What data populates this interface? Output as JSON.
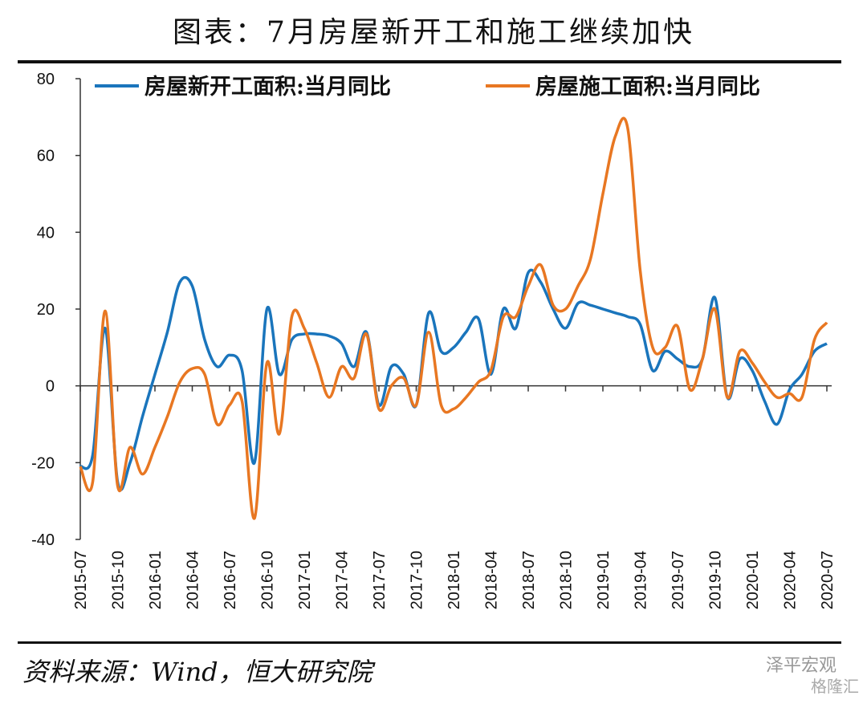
{
  "chart_data": {
    "type": "line",
    "title": "图表：7月房屋新开工和施工继续加快",
    "source": "资料来源：Wind，恒大研究院",
    "watermark": [
      "泽平宏观",
      "格隆汇"
    ],
    "categories": [
      "2015-07",
      null,
      null,
      "2015-10",
      null,
      null,
      "2016-01",
      null,
      null,
      "2016-04",
      null,
      null,
      "2016-07",
      null,
      null,
      "2016-10",
      null,
      null,
      "2017-01",
      null,
      null,
      "2017-04",
      null,
      null,
      "2017-07",
      null,
      null,
      "2017-10",
      null,
      null,
      "2018-01",
      null,
      null,
      "2018-04",
      null,
      null,
      "2018-07",
      null,
      null,
      "2018-10",
      null,
      null,
      "2019-01",
      null,
      null,
      "2019-04",
      null,
      null,
      "2019-07",
      null,
      null,
      "2019-10",
      null,
      null,
      "2020-01",
      null,
      null,
      "2020-04",
      null,
      null,
      "2020-07"
    ],
    "series": [
      {
        "name": "房屋新开工面积:当月同比",
        "color": "#1a75bc",
        "values": [
          -21,
          -18,
          15,
          -25,
          -20,
          -8,
          3,
          14,
          27,
          26,
          12,
          5,
          8,
          4,
          -20,
          20,
          3,
          12,
          13.5,
          13.5,
          13,
          11,
          5,
          14,
          -5,
          5,
          3,
          -5,
          19,
          9,
          10,
          14,
          17.5,
          3,
          20,
          15,
          29.5,
          27,
          20,
          15,
          21.5,
          21,
          20,
          19,
          18,
          16,
          4,
          9,
          7,
          5,
          7,
          23,
          -3,
          7,
          4,
          -4,
          -10,
          -1,
          3,
          9,
          11
        ]
      },
      {
        "name": "房屋施工面积:当月同比",
        "color": "#e87722",
        "values": [
          -21,
          -25,
          19.5,
          -26,
          -16,
          -23,
          -16,
          -8,
          1,
          4.5,
          3,
          -10,
          -5,
          -4,
          -34.5,
          6,
          -12.5,
          18,
          15,
          6,
          -3,
          5,
          2,
          13.5,
          -6,
          0,
          2,
          -5,
          14,
          -5,
          -6,
          -3,
          1,
          4,
          18,
          18,
          26,
          31.5,
          21,
          20,
          26,
          33,
          50,
          65,
          67,
          30,
          10,
          10,
          15.5,
          -1,
          7,
          20,
          -3,
          9,
          6,
          1,
          -3,
          -2,
          -3,
          12,
          16.5
        ]
      }
    ],
    "ylim": [
      -40,
      80
    ],
    "yticks": [
      -40,
      -20,
      0,
      20,
      40,
      60,
      80
    ],
    "legend": "top"
  }
}
